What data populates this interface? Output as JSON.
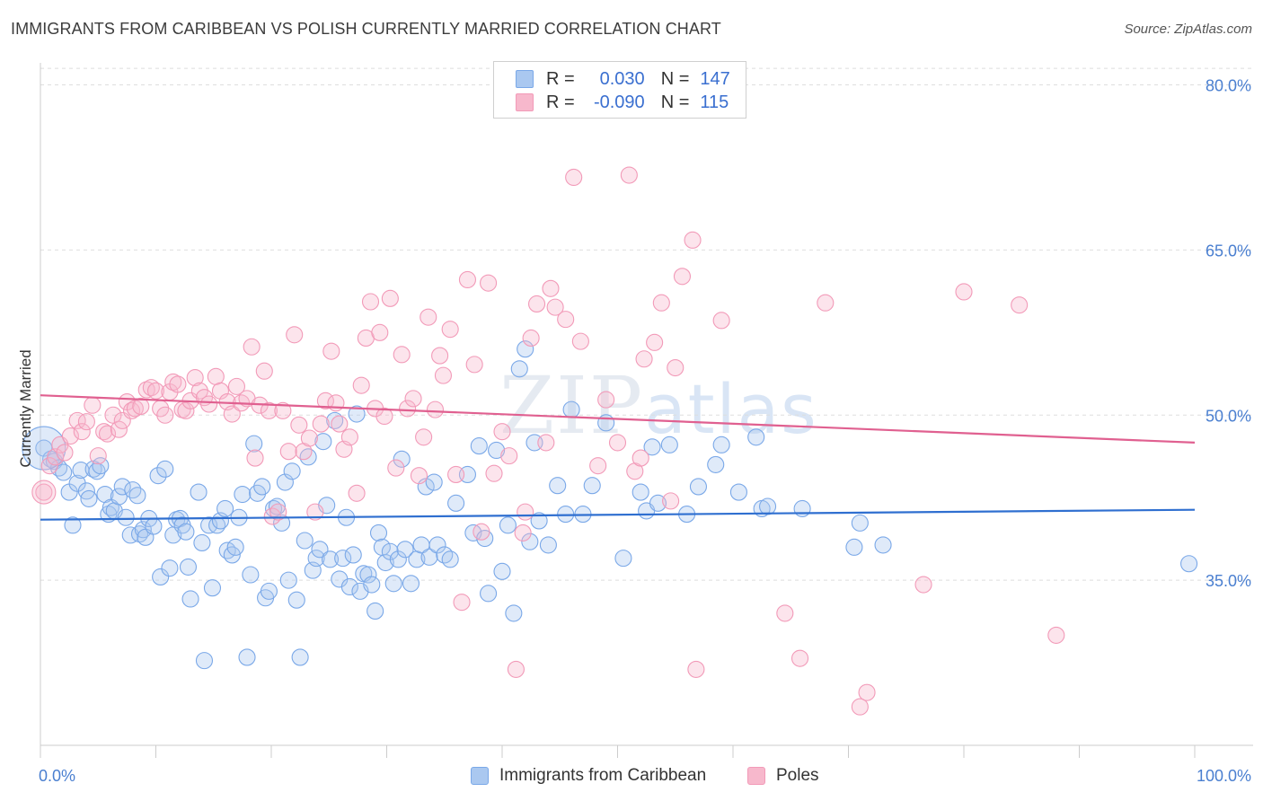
{
  "header": {
    "title": "IMMIGRANTS FROM CARIBBEAN VS POLISH CURRENTLY MARRIED CORRELATION CHART",
    "source": "Source: ZipAtlas.com"
  },
  "watermark": {
    "left": "ZIP",
    "right": "atlas"
  },
  "legend": {
    "rows": [
      {
        "r_label": "R =",
        "r_value": "0.030",
        "n_label": "N =",
        "n_value": "147",
        "color": "#aac8f0"
      },
      {
        "r_label": "R =",
        "r_value": "-0.090",
        "n_label": "N =",
        "n_value": "115",
        "color": "#f7b8cc"
      }
    ]
  },
  "bottom_legend": {
    "items": [
      {
        "label": "Immigrants from Caribbean",
        "color": "#aac8f0"
      },
      {
        "label": "Poles",
        "color": "#f7b8cc"
      }
    ]
  },
  "chart_data": {
    "type": "scatter",
    "title": "IMMIGRANTS FROM CARIBBEAN VS POLISH CURRENTLY MARRIED CORRELATION CHART",
    "xlabel": "",
    "ylabel": "Currently Married",
    "xlim": [
      0,
      100
    ],
    "ylim": [
      20,
      82
    ],
    "x_tick_labels": [
      "0.0%",
      "100.0%"
    ],
    "y_ticks": [
      35,
      50,
      65,
      80
    ],
    "y_tick_labels": [
      "35.0%",
      "50.0%",
      "65.0%",
      "80.0%"
    ],
    "grid": "horizontal dashed",
    "legend_position": "top-center",
    "series": [
      {
        "name": "Immigrants from Caribbean",
        "color": "#7aa8e8",
        "line_color": "#2f6fd0",
        "trend": {
          "x": [
            0,
            100
          ],
          "y": [
            40.5,
            41.4
          ]
        },
        "points": [
          [
            0.3,
            47.0
          ],
          [
            0.9,
            46.0
          ],
          [
            1.2,
            45.8
          ],
          [
            1.6,
            45.2
          ],
          [
            2.0,
            44.8
          ],
          [
            2.5,
            43.0
          ],
          [
            2.8,
            40.0
          ],
          [
            3.2,
            43.8
          ],
          [
            3.5,
            45.0
          ],
          [
            4.0,
            43.1
          ],
          [
            4.2,
            42.4
          ],
          [
            4.6,
            45.1
          ],
          [
            4.9,
            44.9
          ],
          [
            5.2,
            45.4
          ],
          [
            5.6,
            42.8
          ],
          [
            5.9,
            41.0
          ],
          [
            6.1,
            41.6
          ],
          [
            6.4,
            41.3
          ],
          [
            6.8,
            42.6
          ],
          [
            7.1,
            43.5
          ],
          [
            7.4,
            40.7
          ],
          [
            7.8,
            39.1
          ],
          [
            8.0,
            43.2
          ],
          [
            8.4,
            42.7
          ],
          [
            8.6,
            39.2
          ],
          [
            8.9,
            39.6
          ],
          [
            9.1,
            38.9
          ],
          [
            9.4,
            40.6
          ],
          [
            9.8,
            39.9
          ],
          [
            10.2,
            44.5
          ],
          [
            10.4,
            35.3
          ],
          [
            10.8,
            45.1
          ],
          [
            11.2,
            36.1
          ],
          [
            11.5,
            39.1
          ],
          [
            11.8,
            40.5
          ],
          [
            12.1,
            40.6
          ],
          [
            12.3,
            40.0
          ],
          [
            12.6,
            39.4
          ],
          [
            12.8,
            36.2
          ],
          [
            13.0,
            33.3
          ],
          [
            13.7,
            43.0
          ],
          [
            14.0,
            38.4
          ],
          [
            14.2,
            27.7
          ],
          [
            14.6,
            40.0
          ],
          [
            14.9,
            34.3
          ],
          [
            15.3,
            40.0
          ],
          [
            15.6,
            40.4
          ],
          [
            16.0,
            41.5
          ],
          [
            16.2,
            37.7
          ],
          [
            16.6,
            37.3
          ],
          [
            16.9,
            38.0
          ],
          [
            17.2,
            40.7
          ],
          [
            17.5,
            42.8
          ],
          [
            17.9,
            28.0
          ],
          [
            18.2,
            35.5
          ],
          [
            18.5,
            47.4
          ],
          [
            18.8,
            42.9
          ],
          [
            19.2,
            43.5
          ],
          [
            19.5,
            33.4
          ],
          [
            19.8,
            34.0
          ],
          [
            20.2,
            41.5
          ],
          [
            20.5,
            41.7
          ],
          [
            20.9,
            40.2
          ],
          [
            21.2,
            43.9
          ],
          [
            21.5,
            35.0
          ],
          [
            21.8,
            44.9
          ],
          [
            22.2,
            33.2
          ],
          [
            22.5,
            28.0
          ],
          [
            22.9,
            38.6
          ],
          [
            23.2,
            46.2
          ],
          [
            23.6,
            35.9
          ],
          [
            23.9,
            37.0
          ],
          [
            24.2,
            37.8
          ],
          [
            24.5,
            47.6
          ],
          [
            24.8,
            41.8
          ],
          [
            25.1,
            36.9
          ],
          [
            25.5,
            49.5
          ],
          [
            25.9,
            35.1
          ],
          [
            26.2,
            37.0
          ],
          [
            26.5,
            40.7
          ],
          [
            26.8,
            34.4
          ],
          [
            27.1,
            37.3
          ],
          [
            27.4,
            50.1
          ],
          [
            27.7,
            34.0
          ],
          [
            28.0,
            35.6
          ],
          [
            28.4,
            35.5
          ],
          [
            28.7,
            34.6
          ],
          [
            29.0,
            32.2
          ],
          [
            29.3,
            39.3
          ],
          [
            29.6,
            38.0
          ],
          [
            29.9,
            36.6
          ],
          [
            30.3,
            37.6
          ],
          [
            30.6,
            34.7
          ],
          [
            31.0,
            36.9
          ],
          [
            31.3,
            46.0
          ],
          [
            31.6,
            37.8
          ],
          [
            32.1,
            34.7
          ],
          [
            32.6,
            36.9
          ],
          [
            33.0,
            38.2
          ],
          [
            33.4,
            43.5
          ],
          [
            33.7,
            37.1
          ],
          [
            34.1,
            43.9
          ],
          [
            34.4,
            38.2
          ],
          [
            35.0,
            37.3
          ],
          [
            35.5,
            36.9
          ],
          [
            36.0,
            42.0
          ],
          [
            37.0,
            44.6
          ],
          [
            37.5,
            39.3
          ],
          [
            38.0,
            47.2
          ],
          [
            38.5,
            38.8
          ],
          [
            38.8,
            33.8
          ],
          [
            39.5,
            46.8
          ],
          [
            40.0,
            35.8
          ],
          [
            40.5,
            40.0
          ],
          [
            41.0,
            32.0
          ],
          [
            41.5,
            54.2
          ],
          [
            42.0,
            56.0
          ],
          [
            42.4,
            38.5
          ],
          [
            42.8,
            47.5
          ],
          [
            43.2,
            40.4
          ],
          [
            44.0,
            38.2
          ],
          [
            44.8,
            43.6
          ],
          [
            45.5,
            41.0
          ],
          [
            46.0,
            50.5
          ],
          [
            47.0,
            41.0
          ],
          [
            47.8,
            43.6
          ],
          [
            49.0,
            49.3
          ],
          [
            50.5,
            37.0
          ],
          [
            52.0,
            43.0
          ],
          [
            52.5,
            41.3
          ],
          [
            53.0,
            47.1
          ],
          [
            53.5,
            42.0
          ],
          [
            54.5,
            47.3
          ],
          [
            56.0,
            41.0
          ],
          [
            57.0,
            43.5
          ],
          [
            58.5,
            45.5
          ],
          [
            59.0,
            47.3
          ],
          [
            60.5,
            43.0
          ],
          [
            62.0,
            48.0
          ],
          [
            62.5,
            41.5
          ],
          [
            63.0,
            41.7
          ],
          [
            66.0,
            41.5
          ],
          [
            70.5,
            38.0
          ],
          [
            71.0,
            40.2
          ],
          [
            73.0,
            38.2
          ],
          [
            99.5,
            36.5
          ]
        ]
      },
      {
        "name": "Poles",
        "color": "#f29ab8",
        "line_color": "#e06090",
        "trend": {
          "x": [
            0,
            100
          ],
          "y": [
            51.8,
            47.5
          ]
        },
        "points": [
          [
            0.3,
            43.0
          ],
          [
            0.8,
            45.4
          ],
          [
            1.3,
            46.2
          ],
          [
            1.7,
            47.3
          ],
          [
            2.1,
            46.6
          ],
          [
            2.6,
            48.1
          ],
          [
            3.2,
            49.5
          ],
          [
            3.6,
            48.5
          ],
          [
            4.0,
            49.4
          ],
          [
            4.5,
            50.9
          ],
          [
            5.0,
            46.3
          ],
          [
            5.5,
            48.5
          ],
          [
            5.8,
            48.3
          ],
          [
            6.3,
            50.0
          ],
          [
            6.8,
            48.7
          ],
          [
            7.1,
            49.5
          ],
          [
            7.5,
            51.2
          ],
          [
            7.9,
            50.4
          ],
          [
            8.2,
            50.6
          ],
          [
            8.7,
            50.8
          ],
          [
            9.2,
            52.3
          ],
          [
            9.6,
            52.5
          ],
          [
            10.0,
            52.2
          ],
          [
            10.4,
            50.6
          ],
          [
            10.8,
            50.0
          ],
          [
            11.2,
            52.1
          ],
          [
            11.5,
            53.0
          ],
          [
            11.9,
            52.8
          ],
          [
            12.3,
            50.5
          ],
          [
            12.6,
            50.4
          ],
          [
            13.0,
            51.3
          ],
          [
            13.4,
            53.4
          ],
          [
            13.8,
            52.2
          ],
          [
            14.2,
            51.6
          ],
          [
            14.6,
            51.0
          ],
          [
            15.2,
            53.5
          ],
          [
            15.6,
            52.2
          ],
          [
            16.2,
            51.2
          ],
          [
            16.6,
            50.1
          ],
          [
            17.0,
            52.6
          ],
          [
            17.4,
            51.1
          ],
          [
            17.9,
            51.5
          ],
          [
            18.3,
            56.2
          ],
          [
            18.6,
            46.1
          ],
          [
            19.0,
            50.9
          ],
          [
            19.4,
            54.0
          ],
          [
            19.8,
            50.4
          ],
          [
            20.1,
            40.8
          ],
          [
            20.6,
            41.2
          ],
          [
            21.0,
            50.4
          ],
          [
            21.5,
            46.7
          ],
          [
            22.0,
            57.3
          ],
          [
            22.4,
            49.1
          ],
          [
            22.8,
            46.7
          ],
          [
            23.3,
            47.9
          ],
          [
            23.8,
            41.2
          ],
          [
            24.3,
            49.2
          ],
          [
            24.7,
            51.3
          ],
          [
            25.2,
            55.8
          ],
          [
            25.6,
            51.1
          ],
          [
            25.9,
            49.2
          ],
          [
            26.3,
            46.9
          ],
          [
            26.8,
            48.0
          ],
          [
            27.4,
            42.9
          ],
          [
            27.8,
            52.7
          ],
          [
            28.2,
            57.0
          ],
          [
            28.6,
            60.3
          ],
          [
            29.0,
            50.6
          ],
          [
            29.4,
            57.5
          ],
          [
            29.8,
            49.9
          ],
          [
            30.3,
            60.6
          ],
          [
            30.8,
            45.2
          ],
          [
            31.3,
            55.5
          ],
          [
            31.8,
            50.6
          ],
          [
            32.3,
            51.5
          ],
          [
            32.8,
            44.5
          ],
          [
            33.2,
            48.0
          ],
          [
            33.6,
            58.9
          ],
          [
            34.2,
            50.5
          ],
          [
            34.6,
            55.4
          ],
          [
            34.9,
            53.6
          ],
          [
            35.5,
            57.8
          ],
          [
            36.0,
            44.6
          ],
          [
            36.5,
            33.0
          ],
          [
            37.0,
            62.3
          ],
          [
            37.6,
            54.6
          ],
          [
            38.2,
            39.4
          ],
          [
            38.8,
            62.0
          ],
          [
            39.3,
            44.7
          ],
          [
            40.0,
            48.5
          ],
          [
            40.6,
            46.3
          ],
          [
            41.2,
            26.9
          ],
          [
            41.8,
            39.3
          ],
          [
            42.0,
            41.2
          ],
          [
            42.5,
            57.0
          ],
          [
            43.0,
            60.1
          ],
          [
            43.8,
            47.5
          ],
          [
            44.2,
            61.5
          ],
          [
            44.6,
            59.8
          ],
          [
            45.5,
            58.7
          ],
          [
            46.2,
            71.6
          ],
          [
            46.8,
            56.7
          ],
          [
            47.7,
            78.5
          ],
          [
            48.3,
            45.4
          ],
          [
            49.0,
            51.4
          ],
          [
            50.0,
            47.5
          ],
          [
            51.0,
            71.8
          ],
          [
            51.5,
            44.9
          ],
          [
            52.0,
            46.1
          ],
          [
            52.3,
            55.1
          ],
          [
            53.2,
            56.6
          ],
          [
            53.8,
            60.2
          ],
          [
            54.6,
            42.2
          ],
          [
            55.0,
            54.3
          ],
          [
            55.6,
            62.6
          ],
          [
            56.5,
            65.9
          ],
          [
            56.8,
            26.9
          ],
          [
            59.0,
            58.6
          ],
          [
            64.5,
            32.0
          ],
          [
            65.8,
            27.9
          ],
          [
            68.0,
            60.2
          ],
          [
            71.0,
            23.5
          ],
          [
            71.6,
            24.8
          ],
          [
            76.5,
            34.6
          ],
          [
            80.0,
            61.2
          ],
          [
            84.8,
            60.0
          ],
          [
            88.0,
            30.0
          ]
        ]
      }
    ]
  }
}
